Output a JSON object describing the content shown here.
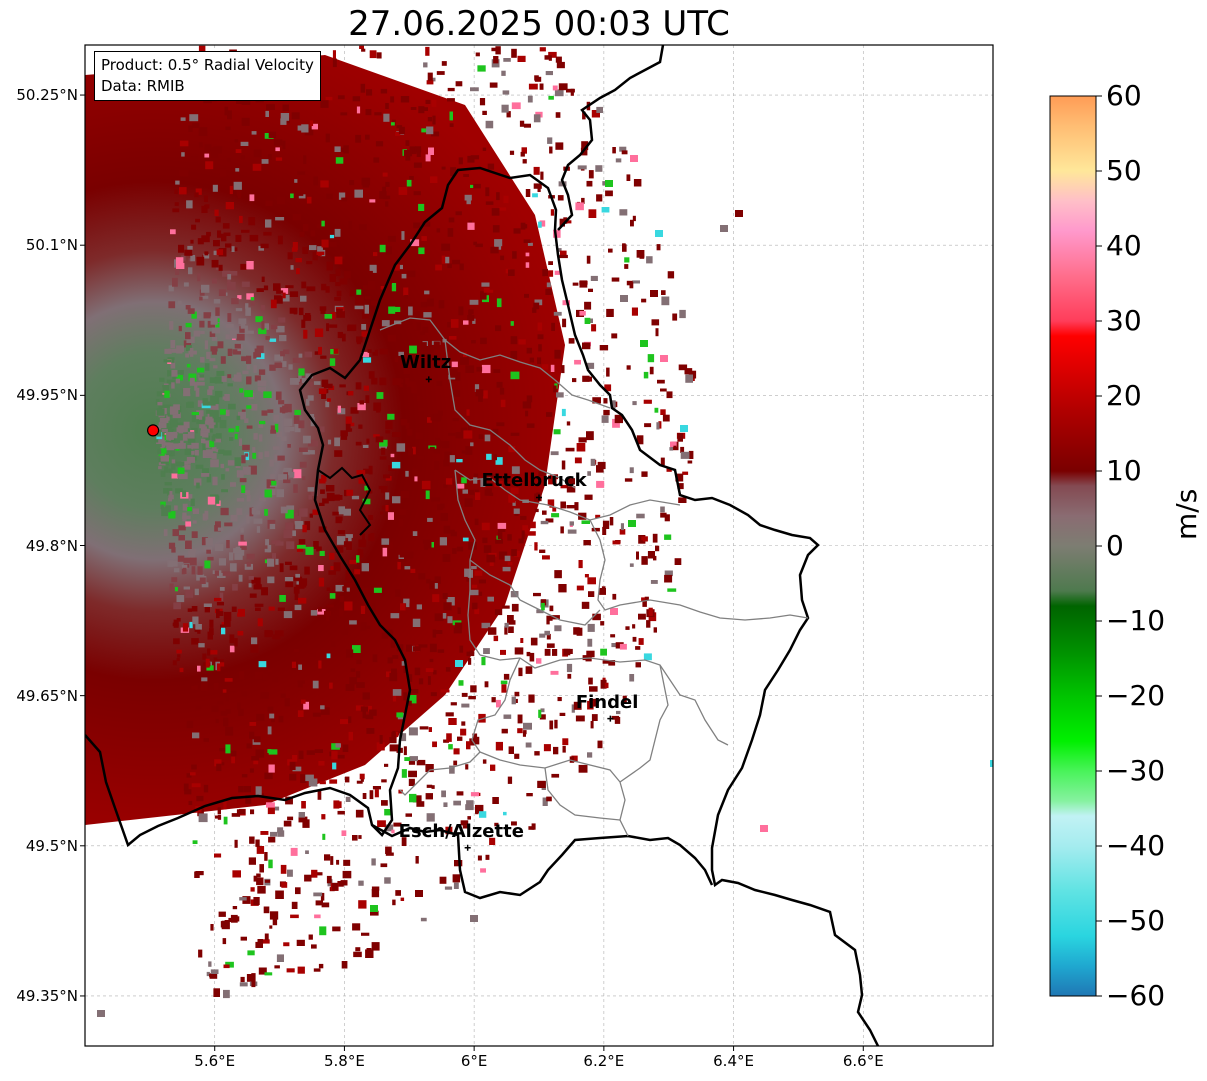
{
  "title": "27.06.2025 00:03 UTC",
  "info": {
    "product": "Product: 0.5° Radial Velocity",
    "data": "Data: RMIB"
  },
  "axes": {
    "latitudes": [
      {
        "value": 50.25,
        "label": "50.25°N"
      },
      {
        "value": 50.1,
        "label": "50.1°N"
      },
      {
        "value": 49.95,
        "label": "49.95°N"
      },
      {
        "value": 49.8,
        "label": "49.8°N"
      },
      {
        "value": 49.65,
        "label": "49.65°N"
      },
      {
        "value": 49.5,
        "label": "49.5°N"
      },
      {
        "value": 49.35,
        "label": "49.35°N"
      }
    ],
    "longitudes": [
      {
        "value": 5.6,
        "label": "5.6°E"
      },
      {
        "value": 5.8,
        "label": "5.8°E"
      },
      {
        "value": 6.0,
        "label": "6°E"
      },
      {
        "value": 6.2,
        "label": "6.2°E"
      },
      {
        "value": 6.4,
        "label": "6.4°E"
      },
      {
        "value": 6.6,
        "label": "6.6°E"
      }
    ],
    "lon_range": [
      5.4,
      6.8
    ],
    "lat_range": [
      49.3,
      50.3
    ],
    "grid": true
  },
  "cities": [
    {
      "name": "Wiltz",
      "lon": 5.93,
      "lat": 49.966
    },
    {
      "name": "Ettelbruck",
      "lon": 6.1,
      "lat": 49.848
    },
    {
      "name": "Findel",
      "lon": 6.21,
      "lat": 49.627
    },
    {
      "name": "Esch/Alzette",
      "lon": 5.99,
      "lat": 49.498
    }
  ],
  "radar": {
    "name": "radar-site",
    "lon": 5.505,
    "lat": 49.915,
    "color": "#ff0000"
  },
  "colorbar": {
    "label": "m/s",
    "min": -60,
    "max": 60,
    "ticks": [
      {
        "value": 60,
        "label": "60"
      },
      {
        "value": 50,
        "label": "50"
      },
      {
        "value": 40,
        "label": "40"
      },
      {
        "value": 30,
        "label": "30"
      },
      {
        "value": 20,
        "label": "20"
      },
      {
        "value": 10,
        "label": "10"
      },
      {
        "value": 0,
        "label": "0"
      },
      {
        "value": -10,
        "label": "−10"
      },
      {
        "value": -20,
        "label": "−20"
      },
      {
        "value": -30,
        "label": "−30"
      },
      {
        "value": -40,
        "label": "−40"
      },
      {
        "value": -50,
        "label": "−50"
      },
      {
        "value": -60,
        "label": "−60"
      }
    ],
    "stops": [
      {
        "v": -60,
        "c": "#1f77b4"
      },
      {
        "v": -56,
        "c": "#1fa8d0"
      },
      {
        "v": -52,
        "c": "#2ad5e0"
      },
      {
        "v": -46,
        "c": "#60e3e3"
      },
      {
        "v": -40,
        "c": "#a5ecef"
      },
      {
        "v": -36,
        "c": "#c1f2f4"
      },
      {
        "v": -34,
        "c": "#86f2a0"
      },
      {
        "v": -30,
        "c": "#49f35a"
      },
      {
        "v": -26,
        "c": "#00f000"
      },
      {
        "v": -20,
        "c": "#00c400"
      },
      {
        "v": -14,
        "c": "#009000"
      },
      {
        "v": -8,
        "c": "#006400"
      },
      {
        "v": -6,
        "c": "#4e7a4e"
      },
      {
        "v": 0,
        "c": "#7d7d72"
      },
      {
        "v": 4,
        "c": "#8a6c72"
      },
      {
        "v": 8,
        "c": "#844a52"
      },
      {
        "v": 10,
        "c": "#7a0000"
      },
      {
        "v": 18,
        "c": "#b00000"
      },
      {
        "v": 28,
        "c": "#ff0000"
      },
      {
        "v": 30,
        "c": "#ff3d5a"
      },
      {
        "v": 36,
        "c": "#ff6e8c"
      },
      {
        "v": 42,
        "c": "#ff99cc"
      },
      {
        "v": 46,
        "c": "#ffbfc8"
      },
      {
        "v": 50,
        "c": "#ffe79a"
      },
      {
        "v": 56,
        "c": "#ffbd73"
      },
      {
        "v": 60,
        "c": "#ff9c55"
      }
    ]
  },
  "colors": {
    "far_negative": "#4f7e4f",
    "near_zero": "#836f74",
    "positive": "#7f0000",
    "strong_positive": "#a80000",
    "inbound": "#1ec41e",
    "pink": "#ff6f9c",
    "cyan": "#39d8e0"
  }
}
